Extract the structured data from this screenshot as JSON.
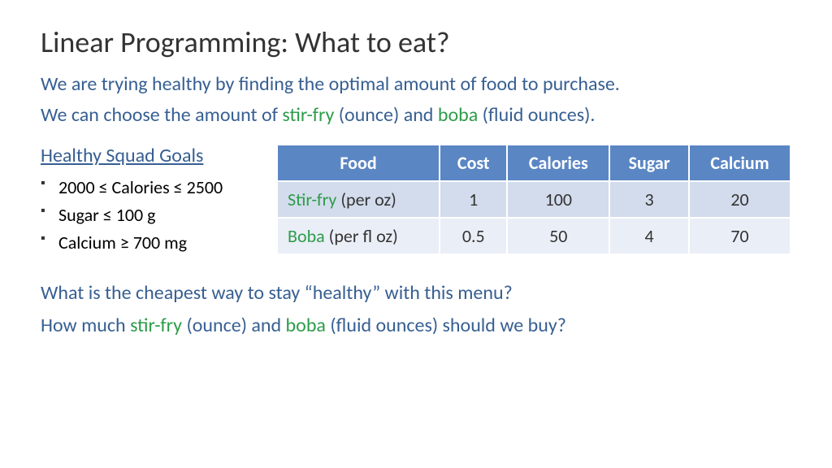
{
  "title": "Linear Programming: What to eat?",
  "intro": {
    "line1_pre": "We are trying healthy by finding the optimal amount of food to purchase.",
    "line2_pre": "We can choose the amount of ",
    "line2_food1": "stir-fry",
    "line2_mid": " (ounce) and ",
    "line2_food2": "boba",
    "line2_post": " (fluid ounces)."
  },
  "goals": {
    "heading": "Healthy Squad Goals",
    "items": [
      "2000 ≤ Calories ≤ 2500",
      "Sugar ≤ 100 g",
      "Calcium ≥ 700 mg"
    ]
  },
  "table": {
    "headers": [
      "Food",
      "Cost",
      "Calories",
      "Sugar",
      "Calcium"
    ],
    "rows": [
      {
        "food_name": "Stir-fry",
        "food_unit": " (per oz)",
        "cost": "1",
        "calories": "100",
        "sugar": "3",
        "calcium": "20"
      },
      {
        "food_name": "Boba",
        "food_unit": " (per fl oz)",
        "cost": "0.5",
        "calories": "50",
        "sugar": "4",
        "calcium": "70"
      }
    ],
    "header_bg": "#5b86c4",
    "header_fg": "#ffffff",
    "row_even_bg": "#d3dcec",
    "row_odd_bg": "#eaeef6",
    "food_name_color": "#2e9c4a"
  },
  "questions": {
    "q1": "What is the cheapest way to stay “healthy” with this menu?",
    "q2_pre": "How much ",
    "q2_food1": "stir-fry",
    "q2_mid": " (ounce) and ",
    "q2_food2": "boba",
    "q2_post": " (fluid ounces) should we buy?"
  },
  "colors": {
    "title": "#333333",
    "body_blue": "#375f92",
    "green": "#2e9c4a",
    "black": "#000000",
    "background": "#ffffff"
  },
  "fonts": {
    "title_size_pt": 28,
    "body_size_pt": 18
  }
}
